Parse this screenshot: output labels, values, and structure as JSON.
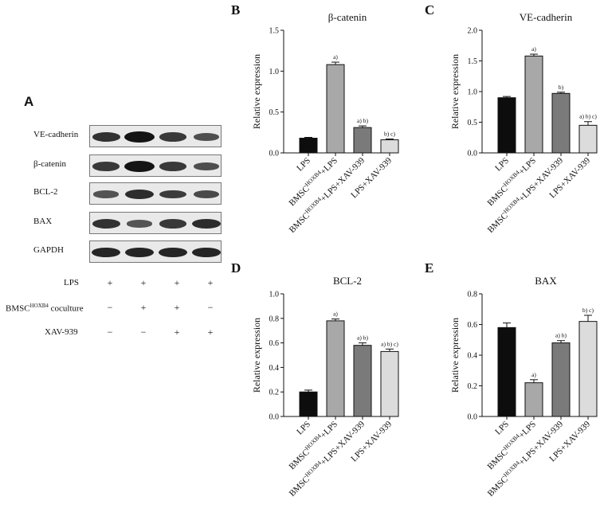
{
  "panel_a": {
    "letter": "A",
    "blot_rows": [
      {
        "label": "VE-cadherin",
        "intensities": [
          0.75,
          1.0,
          0.7,
          0.5
        ]
      },
      {
        "label": "β-catenin",
        "intensities": [
          0.7,
          1.0,
          0.7,
          0.5
        ]
      },
      {
        "label": "BCL-2",
        "intensities": [
          0.45,
          0.8,
          0.65,
          0.55
        ]
      },
      {
        "label": "BAX",
        "intensities": [
          0.75,
          0.45,
          0.7,
          0.8
        ]
      },
      {
        "label": "GAPDH",
        "intensities": [
          0.85,
          0.85,
          0.85,
          0.85
        ]
      }
    ],
    "conditions": [
      {
        "label": "LPS",
        "marks": [
          "+",
          "+",
          "+",
          "+"
        ]
      },
      {
        "label_main": "BMSC",
        "label_sup": "HOXB4",
        "label_tail": " coculture",
        "marks": [
          "−",
          "+",
          "+",
          "−"
        ]
      },
      {
        "label": "XAV-939",
        "marks": [
          "−",
          "−",
          "+",
          "+"
        ]
      }
    ]
  },
  "chart_data": [
    {
      "panel": "B",
      "type": "bar",
      "title": "β-catenin",
      "ylabel": "Relative expression",
      "ylim": [
        0,
        1.5
      ],
      "yticks": [
        "0.0",
        "0.5",
        "1.0",
        "1.5"
      ],
      "categories": [
        {
          "main": "LPS",
          "sup": "",
          "tail": ""
        },
        {
          "main": "BMSC",
          "sup": "HOXB4",
          "tail": "+LPS"
        },
        {
          "main": "BMSC",
          "sup": "HOXB4",
          "tail": "+LPS+XAV-939"
        },
        {
          "main": "LPS+XAV-939",
          "sup": "",
          "tail": ""
        }
      ],
      "values": [
        0.18,
        1.08,
        0.31,
        0.16
      ],
      "errors": [
        0.01,
        0.03,
        0.02,
        0.01
      ],
      "annotations": [
        "",
        "a)",
        "a) b)",
        "b) c)"
      ],
      "bar_colors": [
        "#0d0d0d",
        "#a8a8a8",
        "#7a7a7a",
        "#dcdcdc"
      ]
    },
    {
      "panel": "C",
      "type": "bar",
      "title": "VE-cadherin",
      "ylabel": "Relative expression",
      "ylim": [
        0,
        2.0
      ],
      "yticks": [
        "0.0",
        "0.5",
        "1.0",
        "1.5",
        "2.0"
      ],
      "categories": [
        {
          "main": "LPS",
          "sup": "",
          "tail": ""
        },
        {
          "main": "BMSC",
          "sup": "HOXB4",
          "tail": "+LPS"
        },
        {
          "main": "BMSC",
          "sup": "HOXB4",
          "tail": "+LPS+XAV-939"
        },
        {
          "main": "LPS+XAV-939",
          "sup": "",
          "tail": ""
        }
      ],
      "values": [
        0.9,
        1.58,
        0.97,
        0.45
      ],
      "errors": [
        0.02,
        0.03,
        0.02,
        0.06
      ],
      "annotations": [
        "",
        "a)",
        "b)",
        "a) b) c)"
      ],
      "bar_colors": [
        "#0d0d0d",
        "#a8a8a8",
        "#7a7a7a",
        "#dcdcdc"
      ]
    },
    {
      "panel": "D",
      "type": "bar",
      "title": "BCL-2",
      "ylabel": "Relative expression",
      "ylim": [
        0,
        1.0
      ],
      "yticks": [
        "0.0",
        "0.2",
        "0.4",
        "0.6",
        "0.8",
        "1.0"
      ],
      "categories": [
        {
          "main": "LPS",
          "sup": "",
          "tail": ""
        },
        {
          "main": "BMSC",
          "sup": "HOXB4",
          "tail": "+LPS"
        },
        {
          "main": "BMSC",
          "sup": "HOXB4",
          "tail": "+LPS+XAV-939"
        },
        {
          "main": "LPS+XAV-939",
          "sup": "",
          "tail": ""
        }
      ],
      "values": [
        0.2,
        0.78,
        0.58,
        0.53
      ],
      "errors": [
        0.015,
        0.015,
        0.02,
        0.02
      ],
      "annotations": [
        "",
        "a)",
        "a) b)",
        "a) b) c)"
      ],
      "bar_colors": [
        "#0d0d0d",
        "#a8a8a8",
        "#7a7a7a",
        "#dcdcdc"
      ]
    },
    {
      "panel": "E",
      "type": "bar",
      "title": "BAX",
      "ylabel": "Relative expression",
      "ylim": [
        0,
        0.8
      ],
      "yticks": [
        "0.0",
        "0.2",
        "0.4",
        "0.6",
        "0.8"
      ],
      "categories": [
        {
          "main": "LPS",
          "sup": "",
          "tail": ""
        },
        {
          "main": "BMSC",
          "sup": "HOXB4",
          "tail": "+LPS"
        },
        {
          "main": "BMSC",
          "sup": "HOXB4",
          "tail": "+LPS+XAV-939"
        },
        {
          "main": "LPS+XAV-939",
          "sup": "",
          "tail": ""
        }
      ],
      "values": [
        0.58,
        0.22,
        0.48,
        0.62
      ],
      "errors": [
        0.03,
        0.02,
        0.015,
        0.04
      ],
      "annotations": [
        "",
        "a)",
        "a) b)",
        "b) c)"
      ],
      "bar_colors": [
        "#0d0d0d",
        "#a8a8a8",
        "#7a7a7a",
        "#dcdcdc"
      ]
    }
  ]
}
